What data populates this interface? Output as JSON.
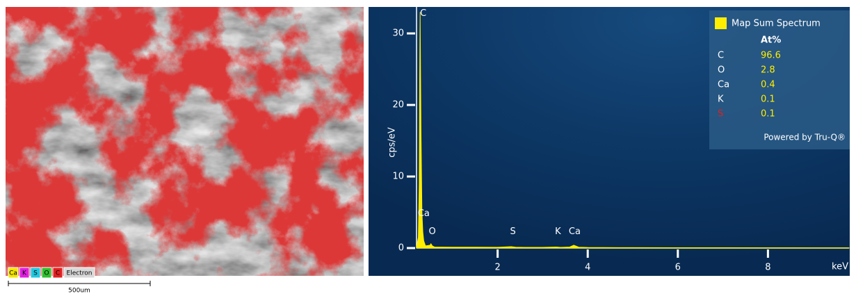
{
  "map": {
    "legend": [
      {
        "name": "Ca",
        "color": "#f5e600"
      },
      {
        "name": "K",
        "color": "#e020e0"
      },
      {
        "name": "S",
        "color": "#20c8e0"
      },
      {
        "name": "O",
        "color": "#30c030"
      },
      {
        "name": "C",
        "color": "#e02020"
      },
      {
        "name": "Electron",
        "color": "#d8d8d8"
      }
    ],
    "scale_bar": "500um"
  },
  "chart_data": {
    "type": "area",
    "y_label": "cps/eV",
    "x_label": "keV",
    "x": [
      0.2,
      0.24,
      0.26,
      0.27,
      0.28,
      0.29,
      0.3,
      0.32,
      0.34,
      0.36,
      0.4,
      0.5,
      0.52,
      0.55,
      0.6,
      1,
      1.5,
      2,
      2.3,
      2.4,
      2.6,
      3,
      3.3,
      3.4,
      3.6,
      3.69,
      3.8,
      4,
      5,
      6,
      7,
      8,
      9,
      9.8
    ],
    "series": [
      {
        "name": "Map Sum Spectrum",
        "color": "#ffee00",
        "values": [
          0.1,
          1.5,
          9,
          24,
          33,
          24,
          16,
          5,
          2.2,
          1,
          0.3,
          0.4,
          0.6,
          0.3,
          0.15,
          0.12,
          0.12,
          0.11,
          0.2,
          0.12,
          0.1,
          0.1,
          0.15,
          0.1,
          0.15,
          0.4,
          0.12,
          0.08,
          0.06,
          0.05,
          0.05,
          0.04,
          0.03,
          0.03
        ]
      }
    ],
    "xlim": [
      0.2,
      9.8
    ],
    "ylim": [
      0,
      33.7
    ],
    "xticks": [
      2,
      4,
      6,
      8
    ],
    "yticks": [
      0,
      10,
      20,
      30
    ],
    "annotations": [
      {
        "text": "C",
        "x": 0.35,
        "y": 32.8
      },
      {
        "text": "Ca",
        "x": 0.36,
        "y": 4.8
      },
      {
        "text": "O",
        "x": 0.55,
        "y": 2.3
      },
      {
        "text": "S",
        "x": 2.34,
        "y": 2.3
      },
      {
        "text": "K",
        "x": 3.34,
        "y": 2.3
      },
      {
        "text": "Ca",
        "x": 3.71,
        "y": 2.3
      }
    ],
    "quant": {
      "header": "At%",
      "rows": [
        {
          "element": "C",
          "value": 96.6,
          "color": "#ffffff"
        },
        {
          "element": "O",
          "value": 2.8,
          "color": "#ffffff"
        },
        {
          "element": "Ca",
          "value": 0.4,
          "color": "#ffffff"
        },
        {
          "element": "K",
          "value": 0.1,
          "color": "#ffffff"
        },
        {
          "element": "S",
          "value": 0.1,
          "color": "#e02020"
        }
      ],
      "footer": "Powered by Tru-Q®"
    }
  }
}
